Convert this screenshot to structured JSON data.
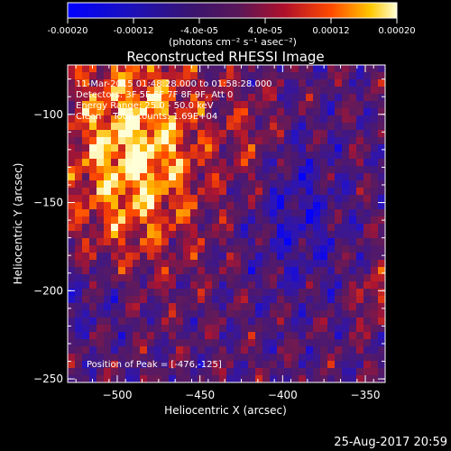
{
  "colorbar": {
    "tick_labels": [
      "-0.00020",
      "-0.00012",
      "-4.0e-05",
      "4.0e-05",
      "0.00012",
      "0.00020"
    ],
    "tick_values": [
      -0.0002,
      -0.00012,
      -4e-05,
      4e-05,
      0.00012,
      0.0002
    ],
    "range": [
      -0.0002,
      0.0002
    ],
    "unit_label": "(photons cm⁻² s⁻¹ asec⁻²)"
  },
  "chart_data": {
    "type": "heatmap",
    "title": "Reconstructed RHESSI Image",
    "xlabel": "Heliocentric X (arcsec)",
    "ylabel": "Heliocentric Y (arcsec)",
    "xlim": [
      -530,
      -338
    ],
    "ylim": [
      -252,
      -72
    ],
    "x_ticks": [
      -500,
      -450,
      -400,
      -350
    ],
    "x_tick_labels": [
      "−500",
      "−450",
      "−400",
      "−350"
    ],
    "y_ticks": [
      -250,
      -200,
      -150,
      -100
    ],
    "y_tick_labels": [
      "−250",
      "−200",
      "−150",
      "−100"
    ],
    "peak": [
      -476,
      -125
    ],
    "annotations": [
      "11-Mar-2015 01:48:28.000 to 01:58:28.000",
      "Detectors: 3F 5F 6F 7F 8F 9F, Att 0",
      "Energy Range: 25.0 - 50.0 keV",
      "Clean    Total counts: 1.69E+04",
      "Position of Peak = [-476,-125]"
    ]
  },
  "footer": {
    "timestamp": "25-Aug-2017 20:59"
  }
}
